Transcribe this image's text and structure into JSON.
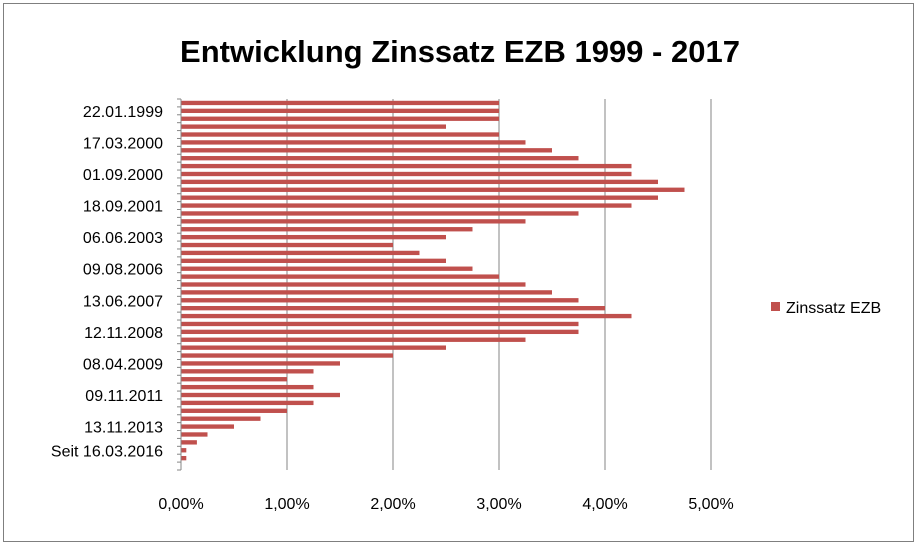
{
  "chart_data": {
    "type": "bar",
    "orientation": "horizontal",
    "title": "Entwicklung Zinssatz EZB 1999 - 2017",
    "xlabel": "",
    "ylabel": "",
    "xlim": [
      0,
      5
    ],
    "x_ticks": [
      "0,00%",
      "1,00%",
      "2,00%",
      "3,00%",
      "4,00%",
      "5,00%"
    ],
    "grid": "vertical",
    "legend_position": "right",
    "series": [
      {
        "name": "Zinssatz EZB",
        "color": "#C0504D",
        "values": [
          3.0,
          3.0,
          3.0,
          2.5,
          3.0,
          3.25,
          3.5,
          3.75,
          4.25,
          4.25,
          4.5,
          4.75,
          4.5,
          4.25,
          3.75,
          3.25,
          2.75,
          2.5,
          2.0,
          2.25,
          2.5,
          2.75,
          3.0,
          3.25,
          3.5,
          3.75,
          4.0,
          4.25,
          3.75,
          3.75,
          3.25,
          2.5,
          2.0,
          1.5,
          1.25,
          1.0,
          1.25,
          1.5,
          1.25,
          1.0,
          0.75,
          0.5,
          0.25,
          0.15,
          0.05,
          0.05,
          0.0
        ]
      }
    ],
    "category_labels": [
      {
        "index": 1,
        "label": "22.01.1999"
      },
      {
        "index": 5,
        "label": "17.03.2000"
      },
      {
        "index": 9,
        "label": "01.09.2000"
      },
      {
        "index": 13,
        "label": "18.09.2001"
      },
      {
        "index": 17,
        "label": "06.06.2003"
      },
      {
        "index": 21,
        "label": "09.08.2006"
      },
      {
        "index": 25,
        "label": "13.06.2007"
      },
      {
        "index": 29,
        "label": "12.11.2008"
      },
      {
        "index": 33,
        "label": "08.04.2009"
      },
      {
        "index": 37,
        "label": "09.11.2011"
      },
      {
        "index": 41,
        "label": "13.11.2013"
      },
      {
        "index": 44,
        "label": "Seit 16.03.2016"
      }
    ]
  }
}
